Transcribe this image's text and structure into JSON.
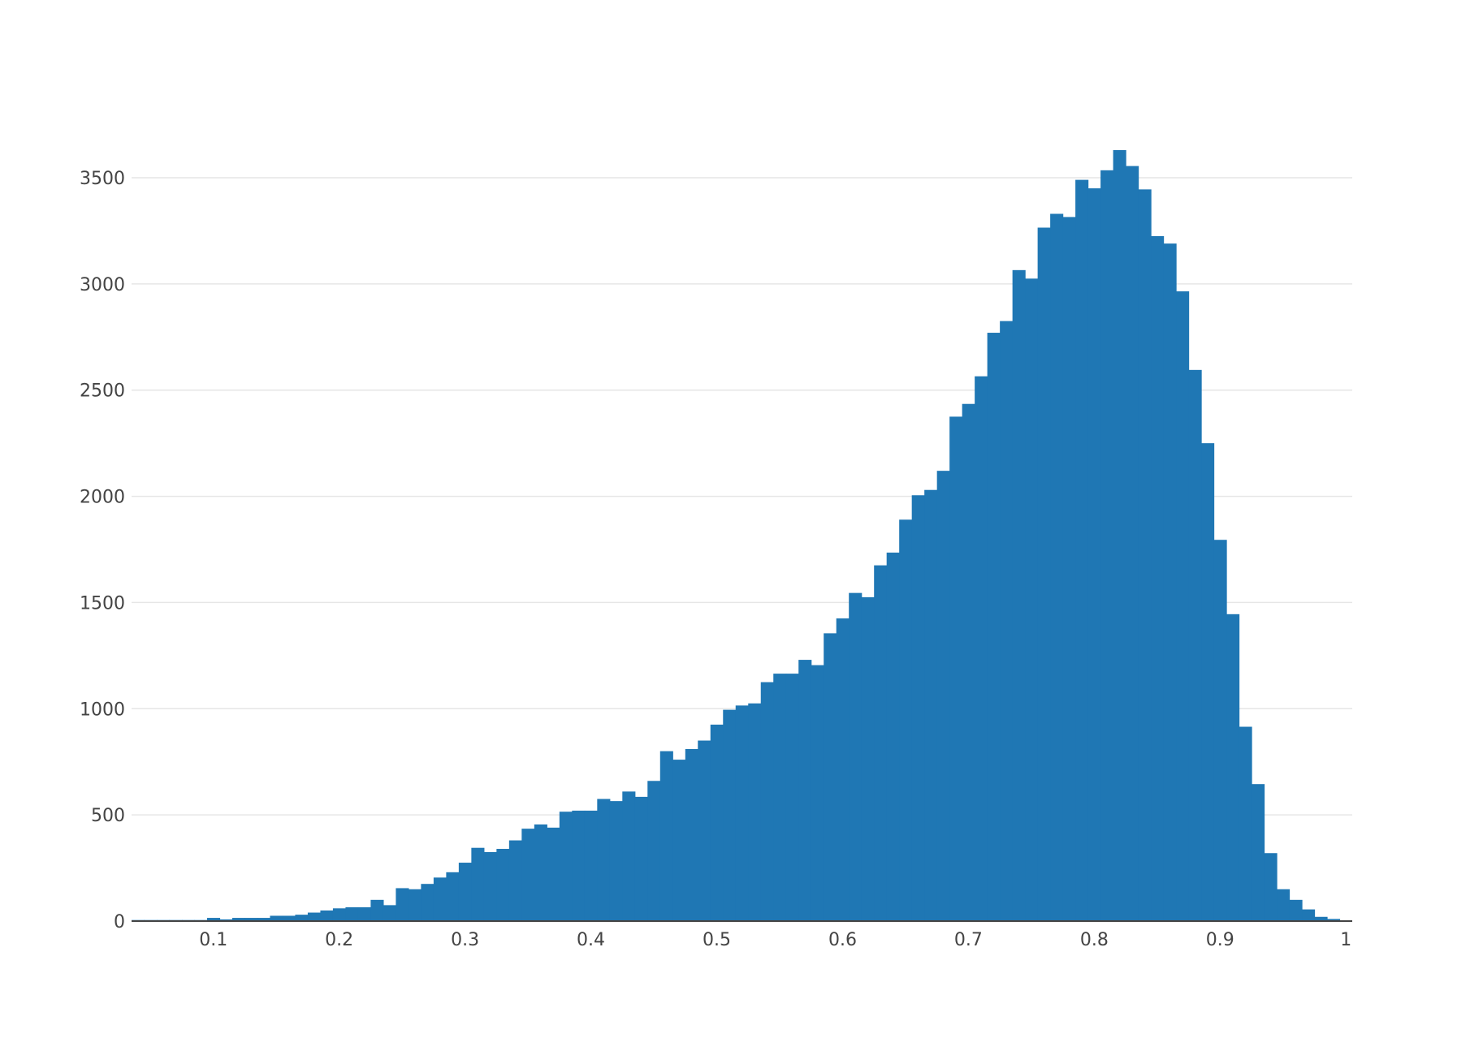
{
  "chart_data": {
    "type": "bar",
    "title": "",
    "xlabel": "",
    "ylabel": "",
    "grid": true,
    "legend": "none",
    "color": "#1f77b4",
    "bin_width": 0.01,
    "xlim": [
      0.035,
      1.005
    ],
    "ylim": [
      0,
      3840
    ],
    "x_ticks": [
      0.1,
      0.2,
      0.3,
      0.4,
      0.5,
      0.6,
      0.7,
      0.8,
      0.9,
      1
    ],
    "x_tick_labels": [
      "0.1",
      "0.2",
      "0.3",
      "0.4",
      "0.5",
      "0.6",
      "0.7",
      "0.8",
      "0.9",
      "1"
    ],
    "y_ticks": [
      0,
      500,
      1000,
      1500,
      2000,
      2500,
      3000,
      3500
    ],
    "y_tick_labels": [
      "0",
      "500",
      "1000",
      "1500",
      "2000",
      "2500",
      "3000",
      "3500"
    ],
    "x": [
      0.04,
      0.05,
      0.06,
      0.07,
      0.08,
      0.09,
      0.1,
      0.11,
      0.12,
      0.13,
      0.14,
      0.15,
      0.16,
      0.17,
      0.18,
      0.19,
      0.2,
      0.21,
      0.22,
      0.23,
      0.24,
      0.25,
      0.26,
      0.27,
      0.28,
      0.29,
      0.3,
      0.31,
      0.32,
      0.33,
      0.34,
      0.35,
      0.36,
      0.37,
      0.38,
      0.39,
      0.4,
      0.41,
      0.42,
      0.43,
      0.44,
      0.45,
      0.46,
      0.47,
      0.48,
      0.49,
      0.5,
      0.51,
      0.52,
      0.53,
      0.54,
      0.55,
      0.56,
      0.57,
      0.58,
      0.59,
      0.6,
      0.61,
      0.62,
      0.63,
      0.64,
      0.65,
      0.66,
      0.67,
      0.68,
      0.69,
      0.7,
      0.71,
      0.72,
      0.73,
      0.74,
      0.75,
      0.76,
      0.77,
      0.78,
      0.79,
      0.8,
      0.81,
      0.82,
      0.83,
      0.84,
      0.85,
      0.86,
      0.87,
      0.88,
      0.89,
      0.9,
      0.91,
      0.92,
      0.93,
      0.94,
      0.95,
      0.96,
      0.97,
      0.98,
      0.99
    ],
    "values": [
      5,
      5,
      5,
      5,
      5,
      5,
      15,
      8,
      15,
      15,
      15,
      25,
      25,
      30,
      40,
      50,
      60,
      65,
      65,
      100,
      75,
      155,
      150,
      175,
      205,
      230,
      275,
      345,
      325,
      340,
      380,
      435,
      455,
      440,
      515,
      520,
      520,
      575,
      565,
      610,
      585,
      660,
      800,
      760,
      810,
      850,
      925,
      995,
      1015,
      1025,
      1125,
      1165,
      1165,
      1230,
      1205,
      1355,
      1425,
      1545,
      1525,
      1675,
      1735,
      1890,
      2005,
      2030,
      2120,
      2375,
      2435,
      2565,
      2770,
      2825,
      3065,
      3025,
      3265,
      3330,
      3315,
      3490,
      3450,
      3535,
      3630,
      3555,
      3445,
      3225,
      3190,
      2965,
      2595,
      2250,
      1795,
      1445,
      915,
      645,
      320,
      150,
      100,
      55,
      20,
      10
    ]
  }
}
